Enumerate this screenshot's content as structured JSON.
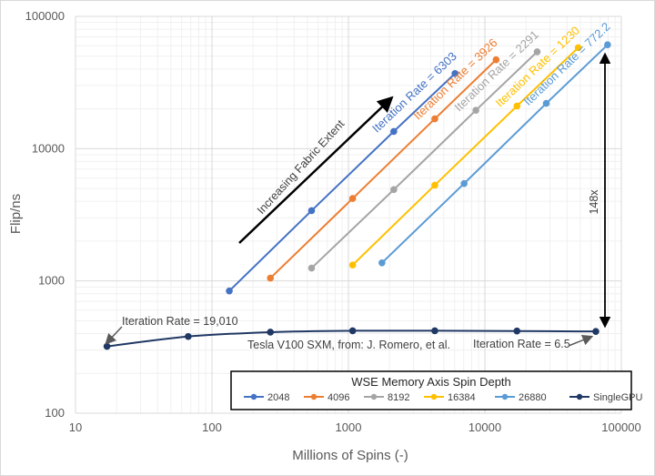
{
  "chart_data": {
    "type": "line",
    "xlabel": "Millions of Spins (-)",
    "ylabel": "Flip/ns",
    "x_scale": "log",
    "y_scale": "log",
    "xlim": [
      10,
      100000
    ],
    "ylim": [
      100,
      100000
    ],
    "x_ticks": [
      "10",
      "100",
      "1000",
      "10000",
      "100000"
    ],
    "y_ticks": [
      "100",
      "1000",
      "10000",
      "100000"
    ],
    "legend": {
      "title": "WSE Memory Axis Spin Depth",
      "position": "bottom-right"
    },
    "series": [
      {
        "name": "2048",
        "color": "#4472C4",
        "x": [
          134,
          537,
          2150,
          6040
        ],
        "y": [
          840,
          3400,
          13500,
          37000
        ]
      },
      {
        "name": "4096",
        "color": "#ED7D31",
        "x": [
          268,
          1074,
          4295,
          12080
        ],
        "y": [
          1050,
          4200,
          16800,
          47000
        ]
      },
      {
        "name": "8192",
        "color": "#A5A5A5",
        "x": [
          537,
          2150,
          8590,
          24160
        ],
        "y": [
          1250,
          4900,
          19500,
          54000
        ]
      },
      {
        "name": "16384",
        "color": "#FFC000",
        "x": [
          1074,
          4295,
          17180,
          48320
        ],
        "y": [
          1320,
          5300,
          21000,
          58000
        ]
      },
      {
        "name": "26880",
        "color": "#5B9BD5",
        "x": [
          1761,
          7045,
          28180,
          79280
        ],
        "y": [
          1370,
          5450,
          22000,
          61000
        ]
      },
      {
        "name": "SingleGPU",
        "color": "#203864",
        "x": [
          17,
          67,
          268,
          1074,
          4295,
          17180,
          65000
        ],
        "y": [
          320,
          380,
          410,
          420,
          420,
          418,
          415
        ]
      }
    ],
    "annotations": {
      "rate_labels": [
        {
          "text": "Iteration Rate = 6303",
          "color": "#4472C4"
        },
        {
          "text": "Iteration Rate = 3926",
          "color": "#ED7D31"
        },
        {
          "text": "Iteration Rate = 2291",
          "color": "#A5A5A5"
        },
        {
          "text": "Iteration Rate = 1230",
          "color": "#FFC000"
        },
        {
          "text": "Iteration Rate = 772.2",
          "color": "#5B9BD5"
        }
      ],
      "fabric_arrow_label": "Increasing Fabric Extent",
      "gpu_rate_left": "Iteration Rate = 19,010",
      "gpu_rate_right": "Iteration Rate = 6.5",
      "gpu_source": "Tesla V100 SXM, from: J. Romero, et al.",
      "speedup": "148x"
    }
  }
}
